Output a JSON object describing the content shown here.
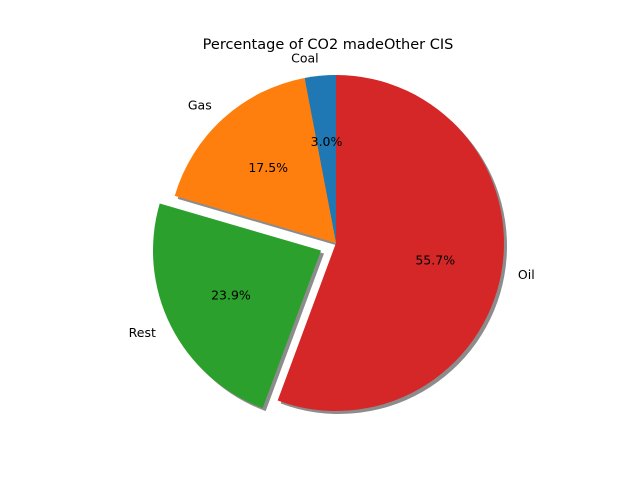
{
  "chart_data": {
    "type": "pie",
    "title": "Percentage of CO2 madeOther CIS",
    "labels": [
      "Coal",
      "Gas",
      "Rest",
      "Oil"
    ],
    "values": [
      3.0,
      17.5,
      23.9,
      55.7
    ],
    "autopct_labels": [
      "3.0%",
      "17.5%",
      "23.9%",
      "55.7%"
    ],
    "colors": [
      "#1f77b4",
      "#ff7f0e",
      "#2ca02c",
      "#d62728"
    ],
    "exploded": [
      "Rest"
    ],
    "shadow": true,
    "start_angle_deg": 90,
    "direction": "counterclockwise"
  }
}
